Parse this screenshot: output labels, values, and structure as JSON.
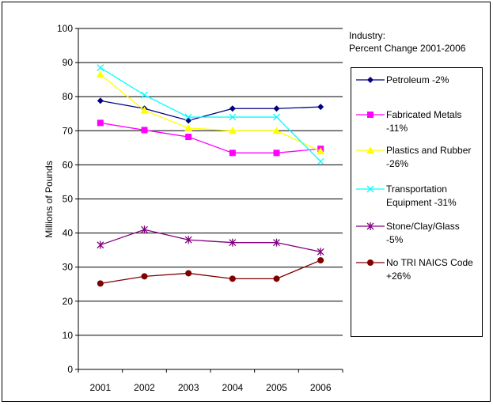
{
  "chart_data": {
    "type": "line",
    "y_label": "Millions of Pounds",
    "legend_title": [
      "Industry:",
      "Percent Change 2001-2006"
    ],
    "categories": [
      "2001",
      "2002",
      "2003",
      "2004",
      "2005",
      "2006"
    ],
    "ylim": [
      0,
      100
    ],
    "yticks": [
      0,
      10,
      20,
      30,
      40,
      50,
      60,
      70,
      80,
      90,
      100
    ],
    "grid": true,
    "legend": "right",
    "series": [
      {
        "name": "Petroleum  -2%",
        "color": "#000080",
        "marker": "diamond",
        "values": [
          78.8,
          76.5,
          73,
          76.5,
          76.5,
          77
        ]
      },
      {
        "name": "Fabricated Metals -11%",
        "color": "#ff00ff",
        "marker": "square",
        "values": [
          72.3,
          70.2,
          68.2,
          63.5,
          63.5,
          64.7
        ]
      },
      {
        "name": "Plastics and Rubber  -26%",
        "color": "#ffff00",
        "marker": "triangle",
        "values": [
          86.5,
          76,
          70.8,
          70,
          70,
          64
        ]
      },
      {
        "name": "Transportation Equipment  -31%",
        "color": "#00ffff",
        "marker": "x",
        "values": [
          88.5,
          80.5,
          74,
          74,
          74,
          61
        ]
      },
      {
        "name": "Stone/Clay/Glass -5%",
        "color": "#800080",
        "marker": "star",
        "values": [
          36.5,
          41,
          38,
          37.2,
          37.2,
          34.5
        ]
      },
      {
        "name": "No TRI NAICS Code +26%",
        "color": "#800000",
        "marker": "circle",
        "values": [
          25.2,
          27.3,
          28.2,
          26.6,
          26.6,
          32
        ]
      }
    ]
  }
}
